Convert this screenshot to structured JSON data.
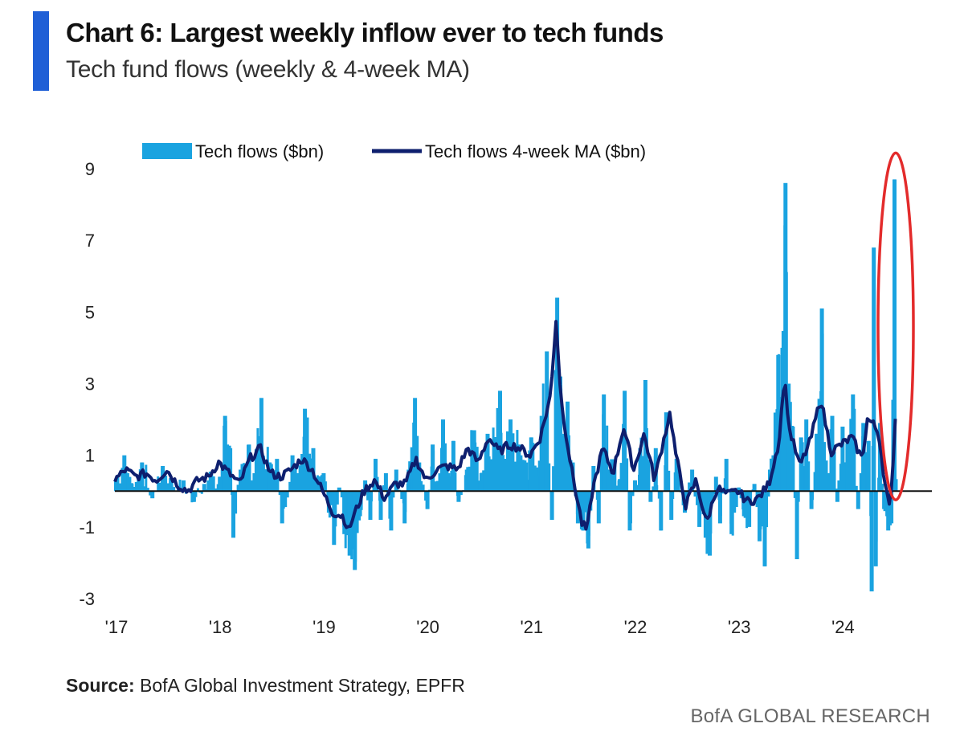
{
  "header": {
    "title": "Chart 6: Largest weekly inflow ever to tech funds",
    "subtitle": "Tech fund flows (weekly & 4-week MA)"
  },
  "footer": {
    "source_label": "Source:",
    "source_text": "BofA Global Investment Strategy, EPFR",
    "brand": "BofA GLOBAL RESEARCH"
  },
  "colors": {
    "accent": "#1f5fd6",
    "bars": "#1aa3e0",
    "ma_line": "#0e1f6e",
    "highlight": "#e32b2b"
  },
  "chart_data": {
    "type": "bar",
    "title": "",
    "xlabel": "",
    "ylabel": "",
    "ylim": [
      -3,
      9
    ],
    "yticks": [
      9,
      7,
      5,
      3,
      1,
      -1,
      -3
    ],
    "xlim": [
      2017.0,
      2025.0
    ],
    "xtick_labels": [
      "'17",
      "'18",
      "'19",
      "'20",
      "'21",
      "'22",
      "'23",
      "'24"
    ],
    "legend": {
      "position": "top",
      "bar_label": "Tech flows ($bn)",
      "line_label": "Tech flows 4-week MA ($bn)"
    },
    "annotation": "red ellipse highlighting latest weekly inflow (June 2024)",
    "bar_anchors": [
      [
        2017.0,
        0.3
      ],
      [
        2017.08,
        1.0
      ],
      [
        2017.15,
        0.2
      ],
      [
        2017.25,
        0.8
      ],
      [
        2017.35,
        -0.2
      ],
      [
        2017.45,
        0.7
      ],
      [
        2017.55,
        0.1
      ],
      [
        2017.65,
        0.3
      ],
      [
        2017.75,
        -0.3
      ],
      [
        2017.85,
        0.2
      ],
      [
        2018.0,
        0.4
      ],
      [
        2018.05,
        2.1
      ],
      [
        2018.1,
        1.2
      ],
      [
        2018.13,
        -1.3
      ],
      [
        2018.2,
        0.6
      ],
      [
        2018.28,
        1.3
      ],
      [
        2018.32,
        0.3
      ],
      [
        2018.4,
        2.6
      ],
      [
        2018.48,
        0.8
      ],
      [
        2018.55,
        0.9
      ],
      [
        2018.6,
        -0.9
      ],
      [
        2018.7,
        1.0
      ],
      [
        2018.78,
        0.7
      ],
      [
        2018.82,
        2.3
      ],
      [
        2018.9,
        1.2
      ],
      [
        2019.0,
        0.5
      ],
      [
        2019.05,
        -0.6
      ],
      [
        2019.1,
        -1.5
      ],
      [
        2019.15,
        0.1
      ],
      [
        2019.2,
        -1.2
      ],
      [
        2019.25,
        -1.8
      ],
      [
        2019.3,
        -2.2
      ],
      [
        2019.35,
        -0.7
      ],
      [
        2019.4,
        0.3
      ],
      [
        2019.45,
        -0.8
      ],
      [
        2019.5,
        0.9
      ],
      [
        2019.55,
        -0.8
      ],
      [
        2019.6,
        0.5
      ],
      [
        2019.65,
        -1.1
      ],
      [
        2019.7,
        0.6
      ],
      [
        2019.78,
        -0.9
      ],
      [
        2019.82,
        0.6
      ],
      [
        2019.88,
        2.6
      ],
      [
        2019.92,
        0.8
      ],
      [
        2020.0,
        -0.5
      ],
      [
        2020.05,
        1.3
      ],
      [
        2020.1,
        0.2
      ],
      [
        2020.15,
        2.0
      ],
      [
        2020.2,
        0.5
      ],
      [
        2020.25,
        1.4
      ],
      [
        2020.3,
        -0.3
      ],
      [
        2020.38,
        0.6
      ],
      [
        2020.45,
        1.7
      ],
      [
        2020.52,
        0.5
      ],
      [
        2020.58,
        1.6
      ],
      [
        2020.65,
        1.4
      ],
      [
        2020.7,
        2.8
      ],
      [
        2020.75,
        0.9
      ],
      [
        2020.8,
        2.0
      ],
      [
        2020.88,
        1.3
      ],
      [
        2020.95,
        0.8
      ],
      [
        2021.0,
        1.5
      ],
      [
        2021.05,
        0.4
      ],
      [
        2021.1,
        2.1
      ],
      [
        2021.15,
        3.9
      ],
      [
        2021.2,
        -0.8
      ],
      [
        2021.25,
        5.4
      ],
      [
        2021.28,
        3.2
      ],
      [
        2021.32,
        1.6
      ],
      [
        2021.35,
        2.5
      ],
      [
        2021.4,
        0.8
      ],
      [
        2021.45,
        -0.9
      ],
      [
        2021.5,
        -1.1
      ],
      [
        2021.55,
        -1.6
      ],
      [
        2021.6,
        0.7
      ],
      [
        2021.65,
        -0.9
      ],
      [
        2021.7,
        2.7
      ],
      [
        2021.75,
        0.6
      ],
      [
        2021.8,
        0.8
      ],
      [
        2021.85,
        0.3
      ],
      [
        2021.9,
        2.8
      ],
      [
        2021.95,
        -1.1
      ],
      [
        2022.0,
        0.3
      ],
      [
        2022.05,
        1.2
      ],
      [
        2022.1,
        3.1
      ],
      [
        2022.15,
        -0.3
      ],
      [
        2022.2,
        1.2
      ],
      [
        2022.25,
        -1.1
      ],
      [
        2022.3,
        2.2
      ],
      [
        2022.35,
        -0.8
      ],
      [
        2022.4,
        0.9
      ],
      [
        2022.48,
        -0.6
      ],
      [
        2022.55,
        0.6
      ],
      [
        2022.62,
        -1.0
      ],
      [
        2022.68,
        -1.3
      ],
      [
        2022.72,
        -1.8
      ],
      [
        2022.78,
        0.4
      ],
      [
        2022.82,
        -0.9
      ],
      [
        2022.88,
        0.9
      ],
      [
        2022.93,
        -1.2
      ],
      [
        2023.0,
        0.1
      ],
      [
        2023.05,
        -0.7
      ],
      [
        2023.1,
        -1.0
      ],
      [
        2023.15,
        0.2
      ],
      [
        2023.2,
        -1.4
      ],
      [
        2023.25,
        -2.1
      ],
      [
        2023.3,
        0.6
      ],
      [
        2023.38,
        3.8
      ],
      [
        2023.42,
        4.0
      ],
      [
        2023.45,
        8.6
      ],
      [
        2023.48,
        3.0
      ],
      [
        2023.52,
        1.8
      ],
      [
        2023.56,
        -1.9
      ],
      [
        2023.6,
        1.5
      ],
      [
        2023.65,
        2.0
      ],
      [
        2023.7,
        -0.5
      ],
      [
        2023.75,
        1.6
      ],
      [
        2023.8,
        5.1
      ],
      [
        2023.85,
        0.5
      ],
      [
        2023.9,
        2.1
      ],
      [
        2023.95,
        -0.3
      ],
      [
        2024.0,
        1.8
      ],
      [
        2024.05,
        1.3
      ],
      [
        2024.1,
        2.7
      ],
      [
        2024.15,
        -0.5
      ],
      [
        2024.2,
        1.9
      ],
      [
        2024.25,
        1.4
      ],
      [
        2024.28,
        -2.8
      ],
      [
        2024.3,
        6.8
      ],
      [
        2024.32,
        -2.1
      ],
      [
        2024.36,
        1.9
      ],
      [
        2024.4,
        -0.5
      ],
      [
        2024.44,
        -1.1
      ],
      [
        2024.47,
        -0.9
      ],
      [
        2024.5,
        8.7
      ],
      [
        2024.52,
        0.0
      ]
    ],
    "ma_anchors": [
      [
        2017.0,
        0.3
      ],
      [
        2017.1,
        0.6
      ],
      [
        2017.2,
        0.4
      ],
      [
        2017.3,
        0.5
      ],
      [
        2017.4,
        0.3
      ],
      [
        2017.5,
        0.6
      ],
      [
        2017.6,
        0.2
      ],
      [
        2017.7,
        0.0
      ],
      [
        2017.8,
        0.3
      ],
      [
        2017.9,
        0.4
      ],
      [
        2018.0,
        0.8
      ],
      [
        2018.1,
        0.5
      ],
      [
        2018.2,
        0.2
      ],
      [
        2018.3,
        0.9
      ],
      [
        2018.4,
        1.2
      ],
      [
        2018.5,
        0.5
      ],
      [
        2018.6,
        0.4
      ],
      [
        2018.7,
        0.6
      ],
      [
        2018.8,
        0.9
      ],
      [
        2018.9,
        0.6
      ],
      [
        2019.0,
        0.0
      ],
      [
        2019.1,
        -0.6
      ],
      [
        2019.2,
        -0.7
      ],
      [
        2019.25,
        -1.1
      ],
      [
        2019.3,
        -0.7
      ],
      [
        2019.4,
        0.0
      ],
      [
        2019.5,
        0.3
      ],
      [
        2019.6,
        -0.2
      ],
      [
        2019.7,
        0.2
      ],
      [
        2019.8,
        0.2
      ],
      [
        2019.9,
        0.9
      ],
      [
        2020.0,
        0.3
      ],
      [
        2020.1,
        0.6
      ],
      [
        2020.2,
        0.7
      ],
      [
        2020.3,
        0.6
      ],
      [
        2020.4,
        1.2
      ],
      [
        2020.5,
        0.8
      ],
      [
        2020.6,
        1.5
      ],
      [
        2020.7,
        1.1
      ],
      [
        2020.8,
        1.3
      ],
      [
        2020.9,
        1.2
      ],
      [
        2021.0,
        1.0
      ],
      [
        2021.1,
        1.5
      ],
      [
        2021.2,
        2.7
      ],
      [
        2021.25,
        4.8
      ],
      [
        2021.3,
        2.5
      ],
      [
        2021.4,
        0.6
      ],
      [
        2021.5,
        -0.9
      ],
      [
        2021.55,
        -1.1
      ],
      [
        2021.6,
        0.0
      ],
      [
        2021.7,
        1.2
      ],
      [
        2021.8,
        0.5
      ],
      [
        2021.9,
        1.8
      ],
      [
        2022.0,
        0.6
      ],
      [
        2022.1,
        1.6
      ],
      [
        2022.2,
        0.3
      ],
      [
        2022.3,
        1.6
      ],
      [
        2022.35,
        2.2
      ],
      [
        2022.4,
        1.1
      ],
      [
        2022.5,
        -0.4
      ],
      [
        2022.6,
        0.3
      ],
      [
        2022.7,
        -0.9
      ],
      [
        2022.8,
        0.1
      ],
      [
        2022.9,
        -0.1
      ],
      [
        2023.0,
        0.0
      ],
      [
        2023.1,
        -0.3
      ],
      [
        2023.2,
        -0.2
      ],
      [
        2023.3,
        0.2
      ],
      [
        2023.4,
        1.4
      ],
      [
        2023.45,
        3.2
      ],
      [
        2023.5,
        1.7
      ],
      [
        2023.6,
        0.7
      ],
      [
        2023.7,
        1.4
      ],
      [
        2023.8,
        2.6
      ],
      [
        2023.9,
        1.1
      ],
      [
        2024.0,
        1.3
      ],
      [
        2024.1,
        1.5
      ],
      [
        2024.2,
        0.9
      ],
      [
        2024.25,
        2.0
      ],
      [
        2024.3,
        1.9
      ],
      [
        2024.36,
        1.6
      ],
      [
        2024.42,
        0.2
      ],
      [
        2024.47,
        -0.6
      ],
      [
        2024.5,
        1.0
      ],
      [
        2024.53,
        2.6
      ]
    ]
  }
}
